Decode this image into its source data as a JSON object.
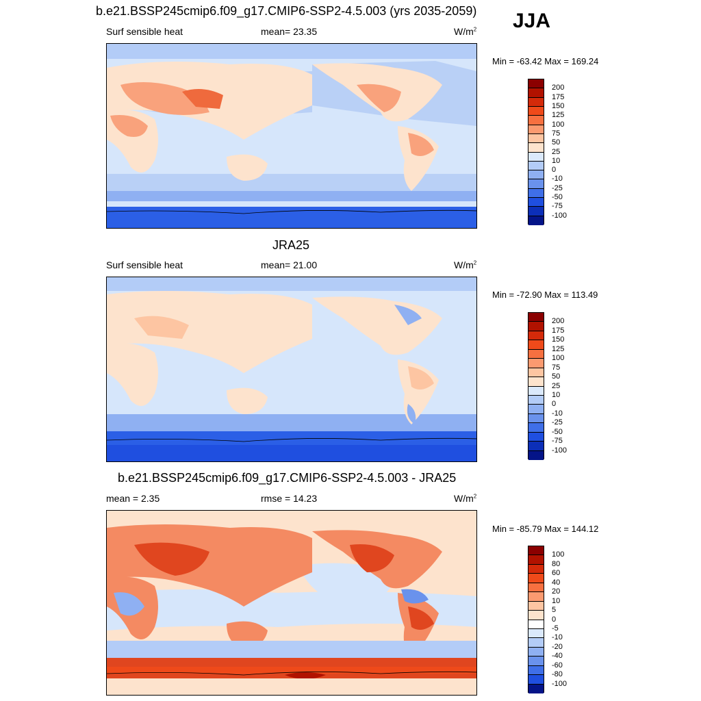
{
  "season": "JJA",
  "panels": [
    {
      "title": "b.e21.BSSP245cmip6.f09_g17.CMIP6-SSP2-4.5.003 (yrs 2035-2059)",
      "left_label": "Surf sensible heat",
      "center_label": "mean=  23.35",
      "units": "W/m",
      "units_sup": "2",
      "minmax": "Min = -63.42 Max = 169.24",
      "colorbar": {
        "labels": [
          "200",
          "175",
          "150",
          "125",
          "100",
          "75",
          "50",
          "25",
          "10",
          "0",
          "-10",
          "-25",
          "-50",
          "-75",
          "-100"
        ],
        "colors": [
          "#8b0000",
          "#b11200",
          "#d42a0a",
          "#ef4a1a",
          "#f77040",
          "#fb9a70",
          "#fdc5a2",
          "#fde3cd",
          "#dbe9fb",
          "#b3ccf7",
          "#8fb0f2",
          "#6a92ec",
          "#3f6fe8",
          "#1f4fe0",
          "#0c2fb8",
          "#041488"
        ]
      }
    },
    {
      "title": "JRA25",
      "left_label": "Surf sensible heat",
      "center_label": "mean=  21.00",
      "units": "W/m",
      "units_sup": "2",
      "minmax": "Min = -72.90 Max = 113.49",
      "colorbar": {
        "labels": [
          "200",
          "175",
          "150",
          "125",
          "100",
          "75",
          "50",
          "25",
          "10",
          "0",
          "-10",
          "-25",
          "-50",
          "-75",
          "-100"
        ],
        "colors": [
          "#8b0000",
          "#b11200",
          "#d42a0a",
          "#ef4a1a",
          "#f77040",
          "#fb9a70",
          "#fdc5a2",
          "#fde3cd",
          "#dbe9fb",
          "#b3ccf7",
          "#8fb0f2",
          "#6a92ec",
          "#3f6fe8",
          "#1f4fe0",
          "#0c2fb8",
          "#041488"
        ]
      }
    },
    {
      "title": "b.e21.BSSP245cmip6.f09_g17.CMIP6-SSP2-4.5.003 - JRA25",
      "left_label": "mean =   2.35",
      "center_label": "rmse =  14.23",
      "units": "W/m",
      "units_sup": "2",
      "minmax": "Min = -85.79 Max = 144.12",
      "colorbar": {
        "labels": [
          "100",
          "80",
          "60",
          "40",
          "20",
          "10",
          "5",
          "0",
          "-5",
          "-10",
          "-20",
          "-40",
          "-60",
          "-80",
          "-100"
        ],
        "colors": [
          "#8b0000",
          "#b11200",
          "#d42a0a",
          "#ef4a1a",
          "#f77040",
          "#fb9a70",
          "#fdc5a2",
          "#fde3cd",
          "#ffffff",
          "#dbe9fb",
          "#b3ccf7",
          "#8fb0f2",
          "#6a92ec",
          "#3f6fe8",
          "#1f4fe0",
          "#041488"
        ]
      }
    }
  ],
  "map_colors": {
    "ocean_mid": "#d6e6fb",
    "ocean_mid2": "#b9d0f6",
    "polar": "#2b5fe6",
    "land_warm": "#fde3cd",
    "land_hot": "#f9a27c",
    "land_hotter": "#ef6a3d",
    "diff_base": "#fde3cd",
    "diff_warm": "#f48a62",
    "diff_cold": "#8fb0f2",
    "diff_strong": "#e0461f",
    "diff_darkest": "#b11200"
  }
}
